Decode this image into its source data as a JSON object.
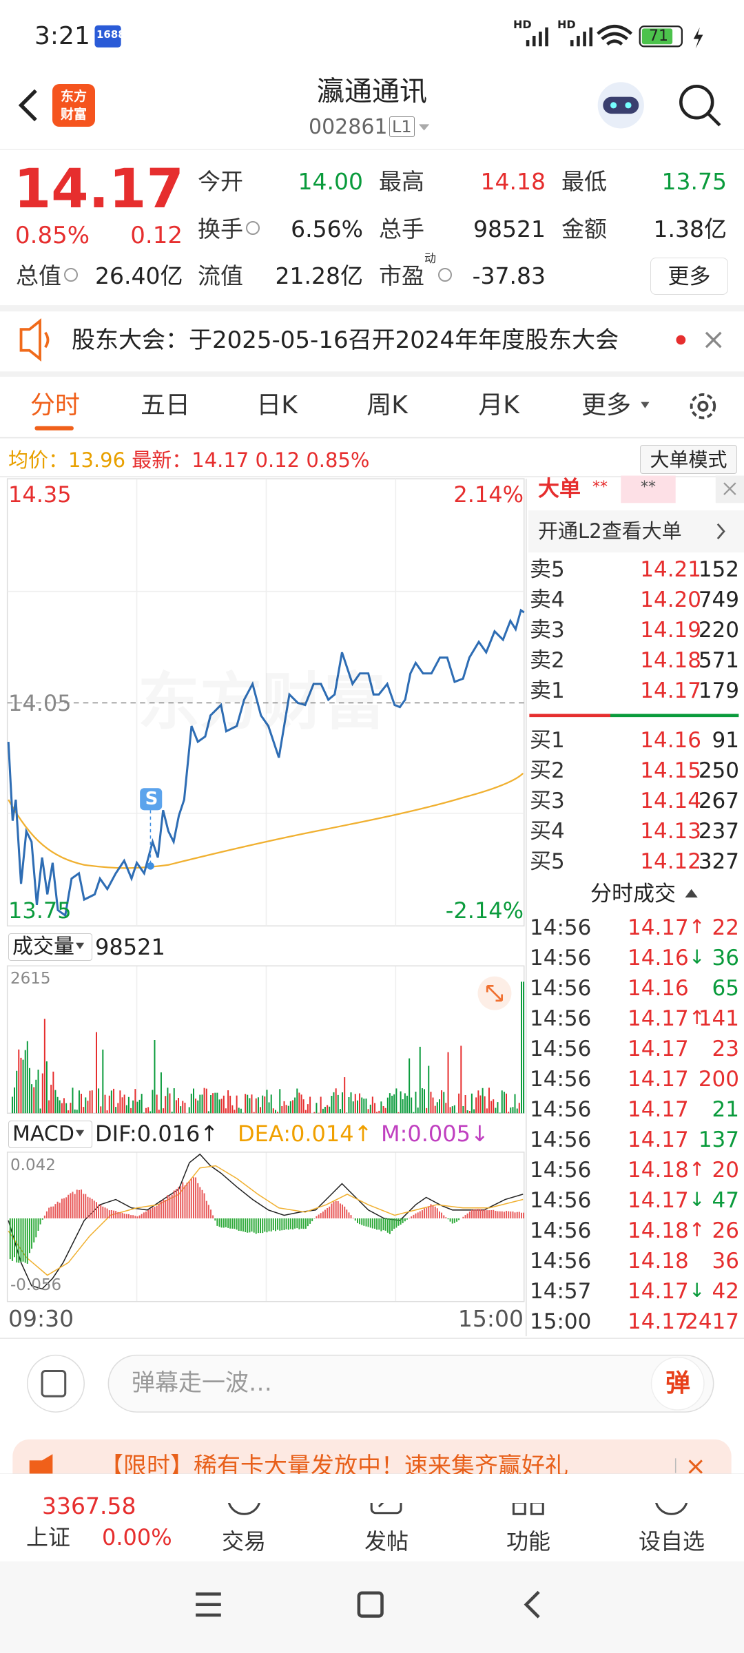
{
  "status_bar": {
    "time": "3:21",
    "app_badge": "1688",
    "signal_labels": [
      "HD",
      "HD"
    ],
    "battery": "71"
  },
  "header": {
    "logo": [
      "东方",
      "财富"
    ],
    "title": "瀛通通讯",
    "code": "002861",
    "level": "L1"
  },
  "quote": {
    "price": "14.17",
    "change_pct": "0.85%",
    "change": "0.12",
    "stats": [
      {
        "label": "今开",
        "value": "14.00",
        "color": "#0a9b3c"
      },
      {
        "label": "最高",
        "value": "14.18",
        "color": "#e62e2e"
      },
      {
        "label": "最低",
        "value": "13.75",
        "color": "#0a9b3c"
      },
      {
        "label": "换手",
        "value": "6.56%"
      },
      {
        "label": "总手",
        "value": "98521"
      },
      {
        "label": "金额",
        "value": "1.38亿"
      },
      {
        "label": "总值",
        "value": "26.40亿"
      },
      {
        "label": "流值",
        "value": "21.28亿"
      },
      {
        "label": "市盈",
        "sup": "动",
        "value": "-37.83"
      }
    ],
    "more": "更多"
  },
  "notice": "股东大会：于2025-05-16召开2024年年度股东大会",
  "tabs": {
    "items": [
      "分时",
      "五日",
      "日K",
      "周K",
      "月K",
      "更多"
    ],
    "active": 0
  },
  "info_line": {
    "avg_label": "均价：",
    "avg": "13.96",
    "last_label": "最新：",
    "last": "14.17",
    "change": "0.12",
    "change_pct": "0.85%",
    "button": "大单模式"
  },
  "intraday": {
    "high": "14.35",
    "high_pct": "2.14%",
    "prev_close": "14.05",
    "low": "13.75",
    "low_pct": "-2.14%",
    "marker": "S",
    "watermark": "东方财富"
  },
  "volume": {
    "label": "成交量",
    "total": "98521",
    "max": "2615"
  },
  "macd": {
    "label": "MACD",
    "dif": "DIF:0.016↑",
    "dea": "DEA:0.014↑",
    "m": "M:0.005↓",
    "max": "0.042",
    "min": "-0.056"
  },
  "time_axis": [
    "09:30",
    "15:00"
  ],
  "big_orders": {
    "title": "大单",
    "hidden": [
      "**",
      "**"
    ],
    "link": "开通L2查看大单"
  },
  "order_book": {
    "asks": [
      {
        "label": "卖5",
        "price": "14.21",
        "volume": "152"
      },
      {
        "label": "卖4",
        "price": "14.20",
        "volume": "749"
      },
      {
        "label": "卖3",
        "price": "14.19",
        "volume": "220"
      },
      {
        "label": "卖2",
        "price": "14.18",
        "volume": "571"
      },
      {
        "label": "卖1",
        "price": "14.17",
        "volume": "179"
      }
    ],
    "bids": [
      {
        "label": "买1",
        "price": "14.16",
        "volume": "91"
      },
      {
        "label": "买2",
        "price": "14.15",
        "volume": "250"
      },
      {
        "label": "买3",
        "price": "14.14",
        "volume": "267"
      },
      {
        "label": "买4",
        "price": "14.13",
        "volume": "237"
      },
      {
        "label": "买5",
        "price": "14.12",
        "volume": "327"
      }
    ]
  },
  "trades": {
    "title": "分时成交",
    "rows": [
      {
        "time": "14:56",
        "price": "14.17",
        "dir": "↑",
        "volume": "22",
        "color": "#e62e2e"
      },
      {
        "time": "14:56",
        "price": "14.16",
        "dir": "↓",
        "volume": "36",
        "color": "#0a9b3c"
      },
      {
        "time": "14:56",
        "price": "14.16",
        "volume": "65",
        "color": "#0a9b3c"
      },
      {
        "time": "14:56",
        "price": "14.17",
        "dir": "↑",
        "volume": "141",
        "color": "#e62e2e"
      },
      {
        "time": "14:56",
        "price": "14.17",
        "volume": "23",
        "color": "#e62e2e"
      },
      {
        "time": "14:56",
        "price": "14.17",
        "volume": "200",
        "color": "#e62e2e"
      },
      {
        "time": "14:56",
        "price": "14.17",
        "volume": "21",
        "color": "#0a9b3c"
      },
      {
        "time": "14:56",
        "price": "14.17",
        "volume": "137",
        "color": "#0a9b3c"
      },
      {
        "time": "14:56",
        "price": "14.18",
        "dir": "↑",
        "volume": "20",
        "color": "#e62e2e"
      },
      {
        "time": "14:56",
        "price": "14.17",
        "dir": "↓",
        "volume": "47",
        "color": "#0a9b3c"
      },
      {
        "time": "14:56",
        "price": "14.18",
        "dir": "↑",
        "volume": "26",
        "color": "#e62e2e"
      },
      {
        "time": "14:56",
        "price": "14.18",
        "volume": "36",
        "color": "#e62e2e"
      },
      {
        "time": "14:57",
        "price": "14.17",
        "dir": "↓",
        "volume": "42",
        "color": "#e62e2e"
      },
      {
        "time": "15:00",
        "price": "14.17",
        "volume": "2417",
        "color": "#e62e2e"
      }
    ]
  },
  "comment": {
    "placeholder": "弹幕走一波…",
    "button": "弹"
  },
  "promo": "【限时】稀有卡大量发放中！速来集齐赢好礼",
  "bottom_nav": {
    "index": {
      "value": "3367.58",
      "name": "上证",
      "change": "0.00%"
    },
    "items": [
      "交易",
      "发帖",
      "功能",
      "设自选"
    ]
  }
}
